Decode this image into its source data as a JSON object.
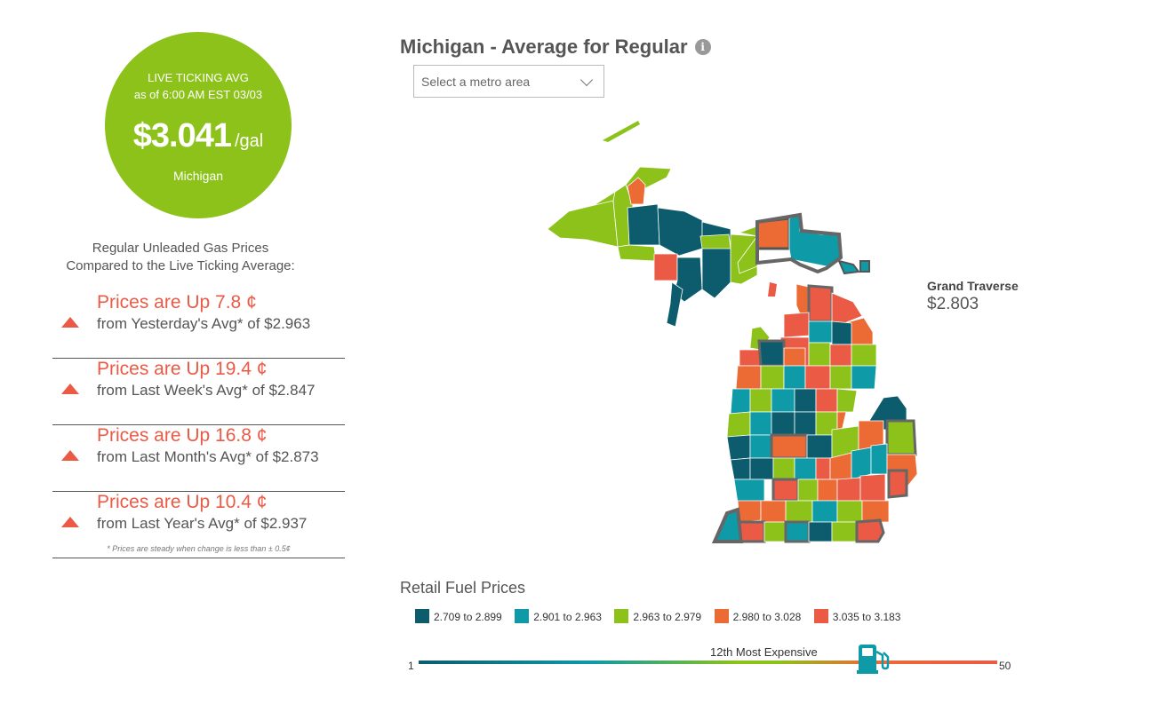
{
  "ticker": {
    "line1": "LIVE TICKING AVG",
    "line2": "as of   6:00 AM EST 03/03",
    "price": "$3.041",
    "unit": "/gal",
    "state": "Michigan"
  },
  "comparison": {
    "heading_line1": "Regular Unleaded Gas Prices",
    "heading_line2": "Compared to the Live Ticking Average:",
    "items": [
      {
        "change": "Prices are Up 7.8 ¢",
        "detail": "from Yesterday's Avg* of $2.963",
        "direction": "up"
      },
      {
        "change": "Prices are Up 19.4 ¢",
        "detail": "from Last Week's Avg* of $2.847",
        "direction": "up"
      },
      {
        "change": "Prices are Up 16.8 ¢",
        "detail": "from Last Month's Avg* of $2.873",
        "direction": "up"
      },
      {
        "change": "Prices are Up 10.4 ¢",
        "detail": "from Last Year's Avg* of $2.937",
        "direction": "up"
      }
    ],
    "footnote": "* Prices are steady when change is less than ± 0.5¢"
  },
  "map_header": {
    "title": "Michigan - Average for Regular",
    "info_icon": "info-icon",
    "metro_placeholder": "Select a metro area"
  },
  "callout": {
    "county": "Grand Traverse",
    "price": "$2.803"
  },
  "legend": {
    "title": "Retail Fuel Prices",
    "items": [
      {
        "label": "2.709 to 2.899",
        "color": "#0c5c6d"
      },
      {
        "label": "2.901 to 2.963",
        "color": "#0e9aa7"
      },
      {
        "label": "2.963 to 2.979",
        "color": "#8cc21a"
      },
      {
        "label": "2.980 to 3.028",
        "color": "#ec6b35"
      },
      {
        "label": "3.035 to 3.183",
        "color": "#ea5a45"
      }
    ]
  },
  "rank": {
    "label": "12th Most Expensive",
    "min": "1",
    "max": "50",
    "position_fraction": 0.78,
    "icon": "gas-pump-icon"
  }
}
